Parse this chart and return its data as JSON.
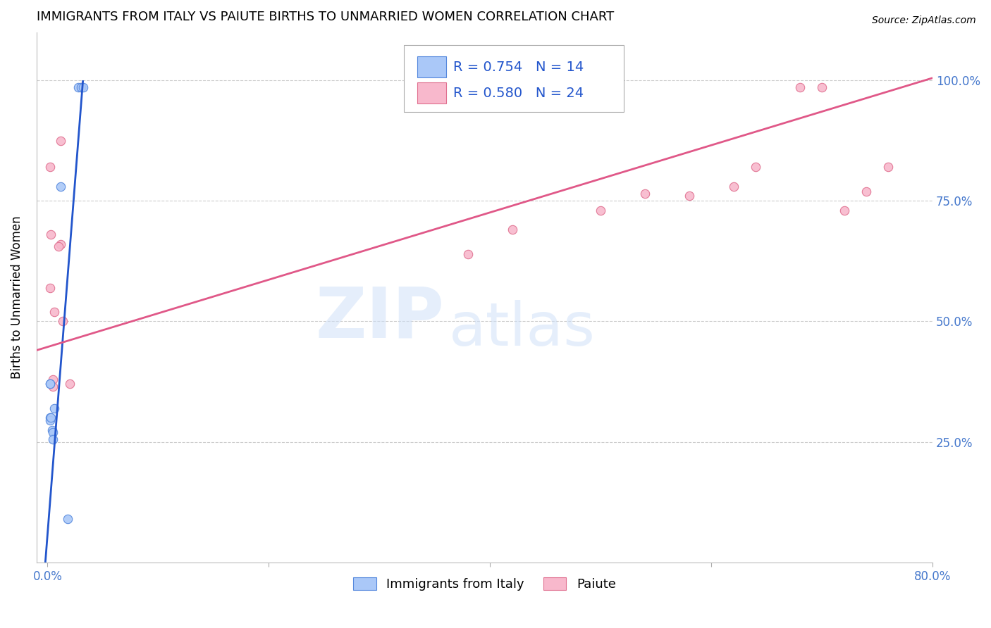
{
  "title": "IMMIGRANTS FROM ITALY VS PAIUTE BIRTHS TO UNMARRIED WOMEN CORRELATION CHART",
  "source": "Source: ZipAtlas.com",
  "ylabel_label": "Births to Unmarried Women",
  "legend_labels": [
    "Immigrants from Italy",
    "Paiute"
  ],
  "blue_scatter_x": [
    0.028,
    0.03,
    0.032,
    0.012,
    0.002,
    0.002,
    0.002,
    0.002,
    0.003,
    0.004,
    0.005,
    0.005,
    0.006,
    0.018
  ],
  "blue_scatter_y": [
    0.985,
    0.985,
    0.985,
    0.78,
    0.37,
    0.37,
    0.3,
    0.295,
    0.3,
    0.275,
    0.27,
    0.255,
    0.32,
    0.09
  ],
  "pink_scatter_x": [
    0.03,
    0.012,
    0.002,
    0.003,
    0.002,
    0.006,
    0.012,
    0.01,
    0.014,
    0.005,
    0.005,
    0.02,
    0.38,
    0.42,
    0.5,
    0.54,
    0.58,
    0.62,
    0.64,
    0.68,
    0.7,
    0.72,
    0.74,
    0.76
  ],
  "pink_scatter_y": [
    0.985,
    0.875,
    0.82,
    0.68,
    0.57,
    0.52,
    0.66,
    0.655,
    0.5,
    0.38,
    0.365,
    0.37,
    0.64,
    0.69,
    0.73,
    0.765,
    0.76,
    0.78,
    0.82,
    0.985,
    0.985,
    0.73,
    0.77,
    0.82
  ],
  "blue_line_x": [
    -0.002,
    0.032
  ],
  "blue_line_y": [
    0.0,
    1.0
  ],
  "pink_line_x": [
    -0.01,
    0.8
  ],
  "pink_line_y": [
    0.44,
    1.005
  ],
  "blue_color": "#aac8f8",
  "blue_edge_color": "#5588dd",
  "pink_color": "#f8b8cc",
  "pink_edge_color": "#e07090",
  "watermark_zip": "ZIP",
  "watermark_atlas": "atlas",
  "xlim": [
    -0.01,
    0.8
  ],
  "ylim": [
    0.0,
    1.1
  ],
  "xtick_positions": [
    0.0,
    0.2,
    0.4,
    0.6,
    0.8
  ],
  "xtick_labels": [
    "0.0%",
    "",
    "",
    "",
    "80.0%"
  ],
  "ytick_positions": [
    0.25,
    0.5,
    0.75,
    1.0
  ],
  "ytick_labels": [
    "25.0%",
    "50.0%",
    "75.0%",
    "100.0%"
  ],
  "marker_size": 80,
  "background_color": "#ffffff",
  "grid_color": "#cccccc",
  "tick_color": "#4477cc",
  "title_fontsize": 13,
  "axis_fontsize": 12,
  "legend_fontsize": 14
}
